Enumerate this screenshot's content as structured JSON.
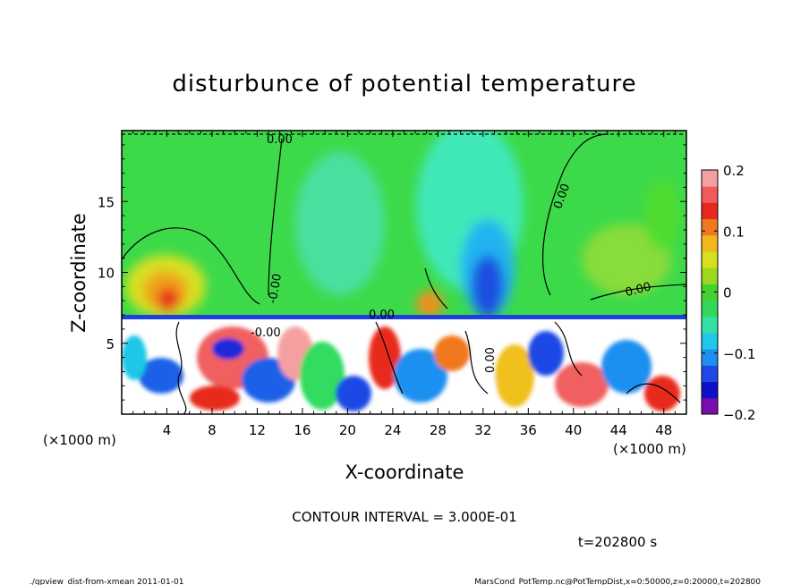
{
  "chart_data": {
    "type": "heatmap",
    "title": "disturbunce of potential temperature",
    "xlabel": "X-coordinate",
    "ylabel": "Z-coordinate",
    "x_unit_left": "(×1000 m)",
    "x_unit_right": "(×1000 m)",
    "xlim": [
      0,
      50
    ],
    "ylim": [
      0,
      20
    ],
    "x_ticks": [
      "4",
      "8",
      "12",
      "16",
      "20",
      "24",
      "28",
      "32",
      "36",
      "40",
      "44",
      "48"
    ],
    "y_ticks": [
      "5",
      "10",
      "15"
    ],
    "colorbar": {
      "range": [
        -0.2,
        0.2
      ],
      "tick_labels": [
        "0.2",
        "0.1",
        "0",
        "−0.1",
        "−0.2"
      ],
      "colors": [
        "#7a0db0",
        "#1010c8",
        "#1f48e6",
        "#1f8ef0",
        "#1fc8e6",
        "#33e0a6",
        "#33d85a",
        "#46d22e",
        "#9bd81e",
        "#d8e01e",
        "#f0b81e",
        "#f0781e",
        "#e8281e",
        "#f05a5a",
        "#f5a0a0"
      ]
    },
    "contour_labels": [
      "0.00",
      "0.00",
      "-0.00",
      "0.00",
      "-0.00",
      "0.00",
      "0.00"
    ],
    "contour_interval_text": "CONTOUR INTERVAL = 3.000E-01",
    "time_text": "t=202800 s",
    "inversion_height_km": 7,
    "legend": "colorbar-right"
  },
  "footer": {
    "left": "./gpview_dist-from-xmean  2011-01-01",
    "right": "MarsCond_PotTemp.nc@PotTempDist,x=0:50000,z=0:20000,t=202800"
  }
}
